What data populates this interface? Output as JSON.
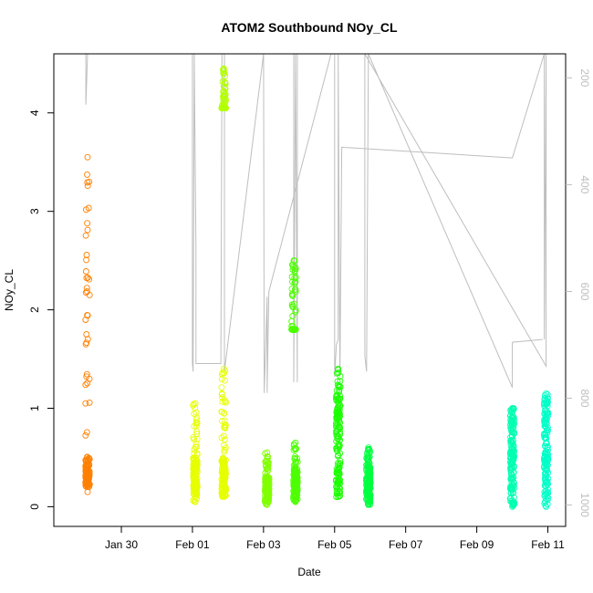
{
  "chart_data": {
    "type": "scatter",
    "title": "ATOM2 Southbound NOy_CL",
    "xlabel": "Date",
    "ylabel": "NOy_CL",
    "x_ticks": [
      "Jan 30",
      "Feb 01",
      "Feb 03",
      "Feb 05",
      "Feb 07",
      "Feb 09",
      "Feb 11"
    ],
    "x_tick_days": [
      30,
      32,
      34,
      36,
      38,
      40,
      42
    ],
    "xlim_days": [
      28.1,
      42.5
    ],
    "y_ticks": [
      0,
      1,
      2,
      3,
      4
    ],
    "ylim": [
      -0.2,
      4.6
    ],
    "y2_ticks": [
      200,
      400,
      600,
      800,
      1000
    ],
    "y2lim": [
      1040,
      155
    ],
    "y2_label": "",
    "grid": false,
    "legend": "none",
    "series": [
      {
        "color": "#FF8000",
        "x_day": 29.05,
        "ymin": 0.15,
        "ymax": 3.55,
        "dense_from": 0.2,
        "dense_to": 0.5,
        "sparse_max": 3.55
      },
      {
        "color": "#E6FF00",
        "x_day": 32.08,
        "ymin": 0.05,
        "ymax": 1.05,
        "dense_from": 0.1,
        "dense_to": 0.5,
        "sparse_max": 1.05
      },
      {
        "color": "#E6FF00",
        "x_day": 32.88,
        "ymin": 0.1,
        "ymax": 1.4,
        "dense_from": 0.1,
        "dense_to": 0.5,
        "sparse_max": 1.4
      },
      {
        "color": "#B3FF00",
        "x_day": 32.88,
        "ymin": 4.05,
        "ymax": 4.45,
        "dense_from": 4.05,
        "dense_to": 4.05,
        "sparse_max": 4.45
      },
      {
        "color": "#80FF00",
        "x_day": 34.1,
        "ymin": 0.02,
        "ymax": 0.55,
        "dense_from": 0.05,
        "dense_to": 0.3,
        "sparse_max": 0.55
      },
      {
        "color": "#4DFF00",
        "x_day": 34.9,
        "ymin": 0.05,
        "ymax": 0.65,
        "dense_from": 0.05,
        "dense_to": 0.4,
        "sparse_max": 0.65
      },
      {
        "color": "#4DFF00",
        "x_day": 34.85,
        "ymin": 1.8,
        "ymax": 2.5,
        "dense_from": 1.8,
        "dense_to": 1.8,
        "sparse_max": 2.5
      },
      {
        "color": "#1AFF00",
        "x_day": 36.1,
        "ymin": 0.1,
        "ymax": 1.4,
        "dense_from": 0.1,
        "dense_to": 1.3,
        "sparse_max": 1.4
      },
      {
        "color": "#00FF40",
        "x_day": 36.95,
        "ymin": 0.02,
        "ymax": 0.6,
        "dense_from": 0.05,
        "dense_to": 0.5,
        "sparse_max": 0.6
      },
      {
        "color": "#00FFB0",
        "x_day": 41.0,
        "ymin": 0.0,
        "ymax": 1.0,
        "dense_from": 0.0,
        "dense_to": 1.0,
        "sparse_max": 1.0
      },
      {
        "color": "#00FFC8",
        "x_day": 41.95,
        "ymin": 0.0,
        "ymax": 1.15,
        "dense_from": 0.0,
        "dense_to": 1.15,
        "sparse_max": 1.15
      }
    ],
    "altitude_trace": {
      "color": "#bebebe",
      "points": [
        [
          29.0,
          155
        ],
        [
          29.0,
          250
        ],
        [
          29.05,
          155
        ],
        [
          32.0,
          155
        ],
        [
          32.0,
          735
        ],
        [
          32.02,
          750
        ],
        [
          32.05,
          155
        ],
        [
          32.1,
          520
        ],
        [
          32.1,
          735
        ],
        [
          32.8,
          735
        ],
        [
          32.83,
          155
        ],
        [
          32.9,
          155
        ],
        [
          32.9,
          750
        ],
        [
          34.0,
          155
        ],
        [
          34.02,
          790
        ],
        [
          34.1,
          610
        ],
        [
          34.1,
          790
        ],
        [
          34.15,
          600
        ],
        [
          35.9,
          155
        ],
        [
          34.85,
          155
        ],
        [
          34.85,
          770
        ],
        [
          34.9,
          155
        ],
        [
          34.95,
          770
        ],
        [
          34.95,
          155
        ],
        [
          36.0,
          155
        ],
        [
          36.0,
          760
        ],
        [
          36.05,
          700
        ],
        [
          36.1,
          690
        ],
        [
          36.1,
          155
        ],
        [
          36.15,
          760
        ],
        [
          36.2,
          330
        ],
        [
          41.0,
          350
        ],
        [
          41.9,
          155
        ],
        [
          41.9,
          690
        ],
        [
          41.95,
          155
        ],
        [
          41.95,
          740
        ],
        [
          36.85,
          155
        ],
        [
          36.85,
          720
        ],
        [
          36.9,
          750
        ],
        [
          36.95,
          155
        ],
        [
          41.0,
          780
        ],
        [
          41.0,
          695
        ],
        [
          41.85,
          690
        ]
      ]
    }
  }
}
